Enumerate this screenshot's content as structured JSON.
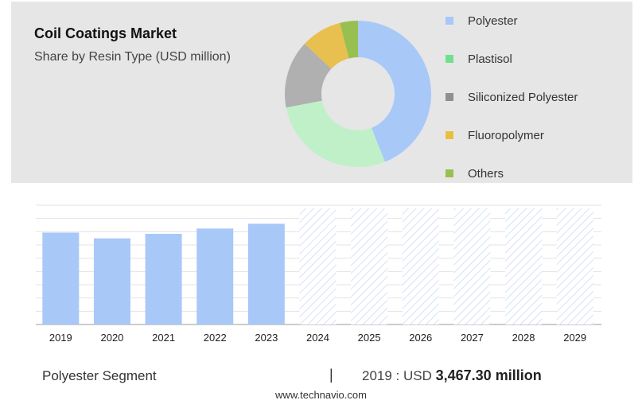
{
  "title": "Coil Coatings Market",
  "subtitle": "Share by Resin Type (USD million)",
  "legend": [
    {
      "label": "Polyester",
      "color": "#a8c8f8"
    },
    {
      "label": "Plastisol",
      "color": "#70e090"
    },
    {
      "label": "Siliconized Polyester",
      "color": "#909090"
    },
    {
      "label": "Fluoropolymer",
      "color": "#e8c040"
    },
    {
      "label": "Others",
      "color": "#98c050"
    }
  ],
  "chart_data": [
    {
      "type": "pie",
      "variant": "donut",
      "title": "Share by Resin Type (USD million)",
      "categories": [
        "Polyester",
        "Plastisol",
        "Siliconized Polyester",
        "Fluoropolymer",
        "Others"
      ],
      "values": [
        44,
        28,
        15,
        9,
        4
      ],
      "colors": [
        "#a8c8f8",
        "#c0f0c8",
        "#b0b0b0",
        "#e8c050",
        "#98c050"
      ]
    },
    {
      "type": "bar",
      "title": "Polyester Segment",
      "categories": [
        "2019",
        "2020",
        "2021",
        "2022",
        "2023",
        "2024",
        "2025",
        "2026",
        "2027",
        "2028",
        "2029"
      ],
      "values": [
        3467.3,
        3250,
        3420,
        3620,
        3800,
        null,
        null,
        null,
        null,
        null,
        null
      ],
      "forecast_categories": [
        "2024",
        "2025",
        "2026",
        "2027",
        "2028",
        "2029"
      ],
      "ylim": [
        0,
        4500
      ],
      "grid": true,
      "bar_color": "#a8c8f8"
    }
  ],
  "footer": {
    "segment": "Polyester Segment",
    "separator": "|",
    "value_prefix": "2019 : USD",
    "value_bold": "3,467.30 million"
  },
  "source": "www.technavio.com"
}
